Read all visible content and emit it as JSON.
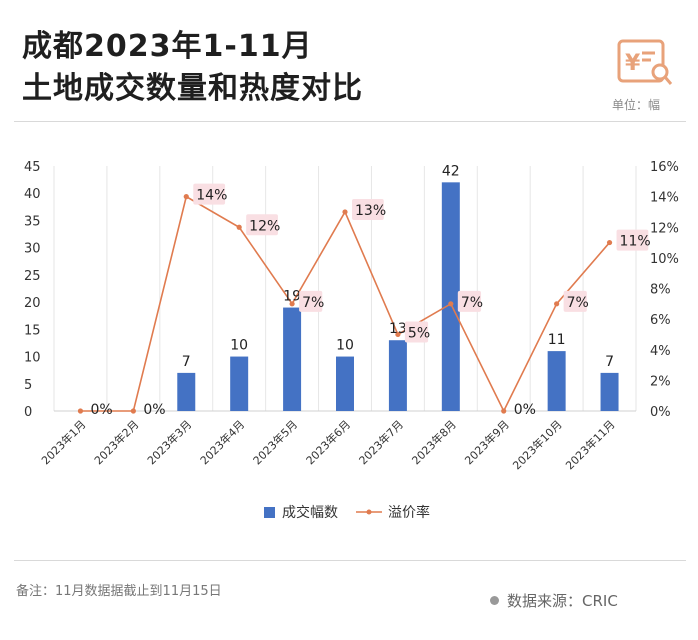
{
  "header": {
    "title_line1": "成都2023年1-11月",
    "title_line2": "土地成交数量和热度对比",
    "unit": "单位：幅",
    "logo_icon": "yen-document-search-icon"
  },
  "footer": {
    "note": "备注：11月数据据截止到11月15日",
    "source": "数据来源：CRIC"
  },
  "colors": {
    "bar": "#4472c4",
    "line": "#e07b4f",
    "label_bg": "#f9dfe3",
    "logo": "#e8a27a"
  },
  "chart_data": {
    "type": "bar+line",
    "categories": [
      "2023年1月",
      "2023年2月",
      "2023年3月",
      "2023年4月",
      "2023年5月",
      "2023年6月",
      "2023年7月",
      "2023年8月",
      "2023年9月",
      "2023年10月",
      "2023年11月"
    ],
    "series": [
      {
        "name": "成交幅数",
        "type": "bar",
        "axis": "left",
        "values": [
          0,
          0,
          7,
          10,
          19,
          10,
          13,
          42,
          0,
          11,
          7
        ],
        "labels": [
          "",
          "",
          "7",
          "10",
          "19",
          "10",
          "13",
          "42",
          "",
          "11",
          "7"
        ]
      },
      {
        "name": "溢价率",
        "type": "line",
        "axis": "right",
        "values": [
          0,
          0,
          14,
          12,
          7,
          13,
          5,
          7,
          0,
          7,
          11
        ],
        "labels": [
          "0%",
          "0%",
          "14%",
          "12%",
          "7%",
          "13%",
          "5%",
          "7%",
          "0%",
          "7%",
          "11%"
        ]
      }
    ],
    "y_left": {
      "min": 0,
      "max": 45,
      "ticks": [
        "0",
        "5",
        "10",
        "15",
        "20",
        "25",
        "30",
        "35",
        "40",
        "45"
      ]
    },
    "y_right": {
      "min": 0,
      "max": 16,
      "ticks": [
        "0%",
        "2%",
        "4%",
        "6%",
        "8%",
        "10%",
        "12%",
        "14%",
        "16%"
      ]
    },
    "grid": "vertical",
    "legend_position": "bottom"
  }
}
